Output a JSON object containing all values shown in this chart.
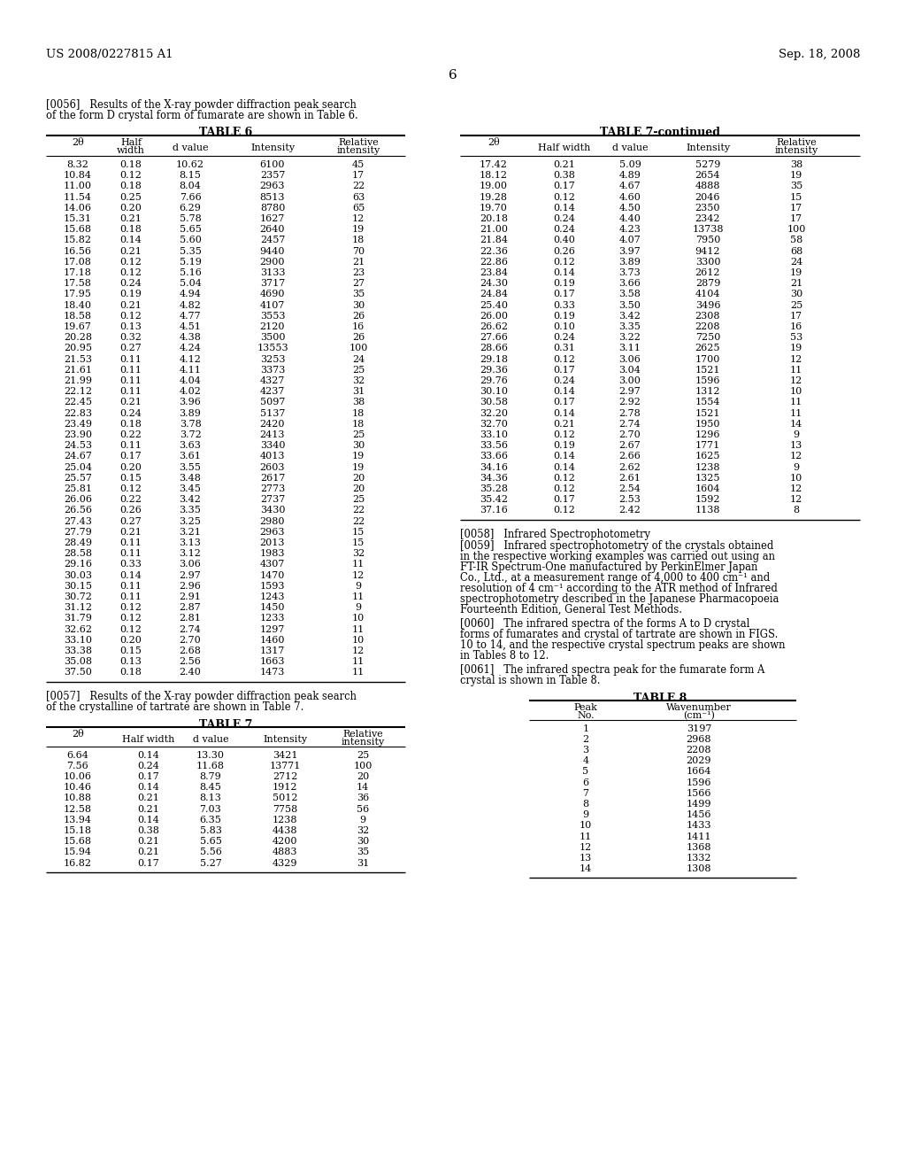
{
  "header_left": "US 2008/0227815 A1",
  "header_right": "Sep. 18, 2008",
  "page_number": "6",
  "table6_title": "TABLE 6",
  "table6_data": [
    [
      "8.32",
      "0.18",
      "10.62",
      "6100",
      "45"
    ],
    [
      "10.84",
      "0.12",
      "8.15",
      "2357",
      "17"
    ],
    [
      "11.00",
      "0.18",
      "8.04",
      "2963",
      "22"
    ],
    [
      "11.54",
      "0.25",
      "7.66",
      "8513",
      "63"
    ],
    [
      "14.06",
      "0.20",
      "6.29",
      "8780",
      "65"
    ],
    [
      "15.31",
      "0.21",
      "5.78",
      "1627",
      "12"
    ],
    [
      "15.68",
      "0.18",
      "5.65",
      "2640",
      "19"
    ],
    [
      "15.82",
      "0.14",
      "5.60",
      "2457",
      "18"
    ],
    [
      "16.56",
      "0.21",
      "5.35",
      "9440",
      "70"
    ],
    [
      "17.08",
      "0.12",
      "5.19",
      "2900",
      "21"
    ],
    [
      "17.18",
      "0.12",
      "5.16",
      "3133",
      "23"
    ],
    [
      "17.58",
      "0.24",
      "5.04",
      "3717",
      "27"
    ],
    [
      "17.95",
      "0.19",
      "4.94",
      "4690",
      "35"
    ],
    [
      "18.40",
      "0.21",
      "4.82",
      "4107",
      "30"
    ],
    [
      "18.58",
      "0.12",
      "4.77",
      "3553",
      "26"
    ],
    [
      "19.67",
      "0.13",
      "4.51",
      "2120",
      "16"
    ],
    [
      "20.28",
      "0.32",
      "4.38",
      "3500",
      "26"
    ],
    [
      "20.95",
      "0.27",
      "4.24",
      "13553",
      "100"
    ],
    [
      "21.53",
      "0.11",
      "4.12",
      "3253",
      "24"
    ],
    [
      "21.61",
      "0.11",
      "4.11",
      "3373",
      "25"
    ],
    [
      "21.99",
      "0.11",
      "4.04",
      "4327",
      "32"
    ],
    [
      "22.12",
      "0.11",
      "4.02",
      "4237",
      "31"
    ],
    [
      "22.45",
      "0.21",
      "3.96",
      "5097",
      "38"
    ],
    [
      "22.83",
      "0.24",
      "3.89",
      "5137",
      "18"
    ],
    [
      "23.49",
      "0.18",
      "3.78",
      "2420",
      "18"
    ],
    [
      "23.90",
      "0.22",
      "3.72",
      "2413",
      "25"
    ],
    [
      "24.53",
      "0.11",
      "3.63",
      "3340",
      "30"
    ],
    [
      "24.67",
      "0.17",
      "3.61",
      "4013",
      "19"
    ],
    [
      "25.04",
      "0.20",
      "3.55",
      "2603",
      "19"
    ],
    [
      "25.57",
      "0.15",
      "3.48",
      "2617",
      "20"
    ],
    [
      "25.81",
      "0.12",
      "3.45",
      "2773",
      "20"
    ],
    [
      "26.06",
      "0.22",
      "3.42",
      "2737",
      "25"
    ],
    [
      "26.56",
      "0.26",
      "3.35",
      "3430",
      "22"
    ],
    [
      "27.43",
      "0.27",
      "3.25",
      "2980",
      "22"
    ],
    [
      "27.79",
      "0.21",
      "3.21",
      "2963",
      "15"
    ],
    [
      "28.49",
      "0.11",
      "3.13",
      "2013",
      "15"
    ],
    [
      "28.58",
      "0.11",
      "3.12",
      "1983",
      "32"
    ],
    [
      "29.16",
      "0.33",
      "3.06",
      "4307",
      "11"
    ],
    [
      "30.03",
      "0.14",
      "2.97",
      "1470",
      "12"
    ],
    [
      "30.15",
      "0.11",
      "2.96",
      "1593",
      "9"
    ],
    [
      "30.72",
      "0.11",
      "2.91",
      "1243",
      "11"
    ],
    [
      "31.12",
      "0.12",
      "2.87",
      "1450",
      "9"
    ],
    [
      "31.79",
      "0.12",
      "2.81",
      "1233",
      "10"
    ],
    [
      "32.62",
      "0.12",
      "2.74",
      "1297",
      "11"
    ],
    [
      "33.10",
      "0.20",
      "2.70",
      "1460",
      "10"
    ],
    [
      "33.38",
      "0.15",
      "2.68",
      "1317",
      "12"
    ],
    [
      "35.08",
      "0.13",
      "2.56",
      "1663",
      "11"
    ],
    [
      "37.50",
      "0.18",
      "2.40",
      "1473",
      "11"
    ]
  ],
  "table7_title": "TABLE 7",
  "table7_data": [
    [
      "6.64",
      "0.14",
      "13.30",
      "3421",
      "25"
    ],
    [
      "7.56",
      "0.24",
      "11.68",
      "13771",
      "100"
    ],
    [
      "10.06",
      "0.17",
      "8.79",
      "2712",
      "20"
    ],
    [
      "10.46",
      "0.14",
      "8.45",
      "1912",
      "14"
    ],
    [
      "10.88",
      "0.21",
      "8.13",
      "5012",
      "36"
    ],
    [
      "12.58",
      "0.21",
      "7.03",
      "7758",
      "56"
    ],
    [
      "13.94",
      "0.14",
      "6.35",
      "1238",
      "9"
    ],
    [
      "15.18",
      "0.38",
      "5.83",
      "4438",
      "32"
    ],
    [
      "15.68",
      "0.21",
      "5.65",
      "4200",
      "30"
    ],
    [
      "15.94",
      "0.21",
      "5.56",
      "4883",
      "35"
    ],
    [
      "16.82",
      "0.17",
      "5.27",
      "4329",
      "31"
    ]
  ],
  "table7cont_title": "TABLE 7-continued",
  "table7cont_data": [
    [
      "17.42",
      "0.21",
      "5.09",
      "5279",
      "38"
    ],
    [
      "18.12",
      "0.38",
      "4.89",
      "2654",
      "19"
    ],
    [
      "19.00",
      "0.17",
      "4.67",
      "4888",
      "35"
    ],
    [
      "19.28",
      "0.12",
      "4.60",
      "2046",
      "15"
    ],
    [
      "19.70",
      "0.14",
      "4.50",
      "2350",
      "17"
    ],
    [
      "20.18",
      "0.24",
      "4.40",
      "2342",
      "17"
    ],
    [
      "21.00",
      "0.24",
      "4.23",
      "13738",
      "100"
    ],
    [
      "21.84",
      "0.40",
      "4.07",
      "7950",
      "58"
    ],
    [
      "22.36",
      "0.26",
      "3.97",
      "9412",
      "68"
    ],
    [
      "22.86",
      "0.12",
      "3.89",
      "3300",
      "24"
    ],
    [
      "23.84",
      "0.14",
      "3.73",
      "2612",
      "19"
    ],
    [
      "24.30",
      "0.19",
      "3.66",
      "2879",
      "21"
    ],
    [
      "24.84",
      "0.17",
      "3.58",
      "4104",
      "30"
    ],
    [
      "25.40",
      "0.33",
      "3.50",
      "3496",
      "25"
    ],
    [
      "26.00",
      "0.19",
      "3.42",
      "2308",
      "17"
    ],
    [
      "26.62",
      "0.10",
      "3.35",
      "2208",
      "16"
    ],
    [
      "27.66",
      "0.24",
      "3.22",
      "7250",
      "53"
    ],
    [
      "28.66",
      "0.31",
      "3.11",
      "2625",
      "19"
    ],
    [
      "29.18",
      "0.12",
      "3.06",
      "1700",
      "12"
    ],
    [
      "29.36",
      "0.17",
      "3.04",
      "1521",
      "11"
    ],
    [
      "29.76",
      "0.24",
      "3.00",
      "1596",
      "12"
    ],
    [
      "30.10",
      "0.14",
      "2.97",
      "1312",
      "10"
    ],
    [
      "30.58",
      "0.17",
      "2.92",
      "1554",
      "11"
    ],
    [
      "32.20",
      "0.14",
      "2.78",
      "1521",
      "11"
    ],
    [
      "32.70",
      "0.21",
      "2.74",
      "1950",
      "14"
    ],
    [
      "33.10",
      "0.12",
      "2.70",
      "1296",
      "9"
    ],
    [
      "33.56",
      "0.19",
      "2.67",
      "1771",
      "13"
    ],
    [
      "33.66",
      "0.14",
      "2.66",
      "1625",
      "12"
    ],
    [
      "34.16",
      "0.14",
      "2.62",
      "1238",
      "9"
    ],
    [
      "34.36",
      "0.12",
      "2.61",
      "1325",
      "10"
    ],
    [
      "35.28",
      "0.12",
      "2.54",
      "1604",
      "12"
    ],
    [
      "35.42",
      "0.17",
      "2.53",
      "1592",
      "12"
    ],
    [
      "37.16",
      "0.12",
      "2.42",
      "1138",
      "8"
    ]
  ],
  "table8_title": "TABLE 8",
  "table8_data": [
    [
      "1",
      "3197"
    ],
    [
      "2",
      "2968"
    ],
    [
      "3",
      "2208"
    ],
    [
      "4",
      "2029"
    ],
    [
      "5",
      "1664"
    ],
    [
      "6",
      "1596"
    ],
    [
      "7",
      "1566"
    ],
    [
      "8",
      "1499"
    ],
    [
      "9",
      "1456"
    ],
    [
      "10",
      "1433"
    ],
    [
      "11",
      "1411"
    ],
    [
      "12",
      "1368"
    ],
    [
      "13",
      "1332"
    ],
    [
      "14",
      "1308"
    ]
  ],
  "para56_line1": "[0056]   Results of the X-ray powder diffraction peak search",
  "para56_line2": "of the form D crystal form of fumarate are shown in Table 6.",
  "para57_line1": "[0057]   Results of the X-ray powder diffraction peak search",
  "para57_line2": "of the crystalline of tartrate are shown in Table 7.",
  "para58": "[0058]   Infrared Spectrophotometry",
  "para59_lines": [
    "[0059]   Infrared spectrophotometry of the crystals obtained",
    "in the respective working examples was carried out using an",
    "FT-IR Spectrum-One manufactured by PerkinElmer Japan",
    "Co., Ltd., at a measurement range of 4,000 to 400 cm⁻¹ and",
    "resolution of 4 cm⁻¹ according to the ATR method of Infrared",
    "spectrophotometry described in the Japanese Pharmacopoeia",
    "Fourteenth Edition, General Test Methods."
  ],
  "para60_lines": [
    "[0060]   The infrared spectra of the forms A to D crystal",
    "forms of fumarates and crystal of tartrate are shown in FIGS.",
    "10 to 14, and the respective crystal spectrum peaks are shown",
    "in Tables 8 to 12."
  ],
  "para61_lines": [
    "[0061]   The infrared spectra peak for the fumarate form A",
    "crystal is shown in Table 8."
  ]
}
